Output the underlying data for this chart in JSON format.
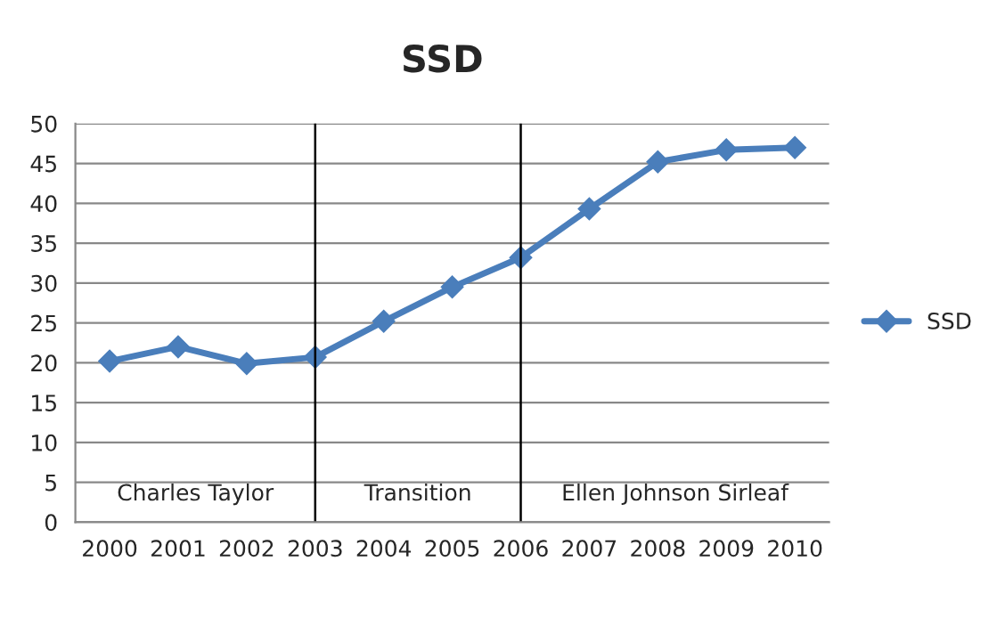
{
  "chart_data": {
    "type": "line",
    "title": "SSD",
    "categories": [
      "2000",
      "2001",
      "2002",
      "2003",
      "2004",
      "2005",
      "2006",
      "2007",
      "2008",
      "2009",
      "2010"
    ],
    "series": [
      {
        "name": "SSD",
        "color": "#4a7ebb",
        "values": [
          20.2,
          22.0,
          19.9,
          20.7,
          25.2,
          29.5,
          33.2,
          39.3,
          45.2,
          46.7,
          47.0
        ]
      }
    ],
    "ylim": [
      0,
      50
    ],
    "yticks": [
      0,
      5,
      10,
      15,
      20,
      25,
      30,
      35,
      40,
      45,
      50
    ],
    "grid": "y",
    "legend": "right",
    "marker": "diamond",
    "line_style": "solid",
    "ref_lines": [
      {
        "axis": "x",
        "value": "2003",
        "color": "#000000"
      },
      {
        "axis": "x",
        "value": "2006",
        "color": "#000000"
      }
    ],
    "annotations": [
      "Charles Taylor",
      "Transition",
      "Ellen Johnson Sirleaf"
    ]
  }
}
